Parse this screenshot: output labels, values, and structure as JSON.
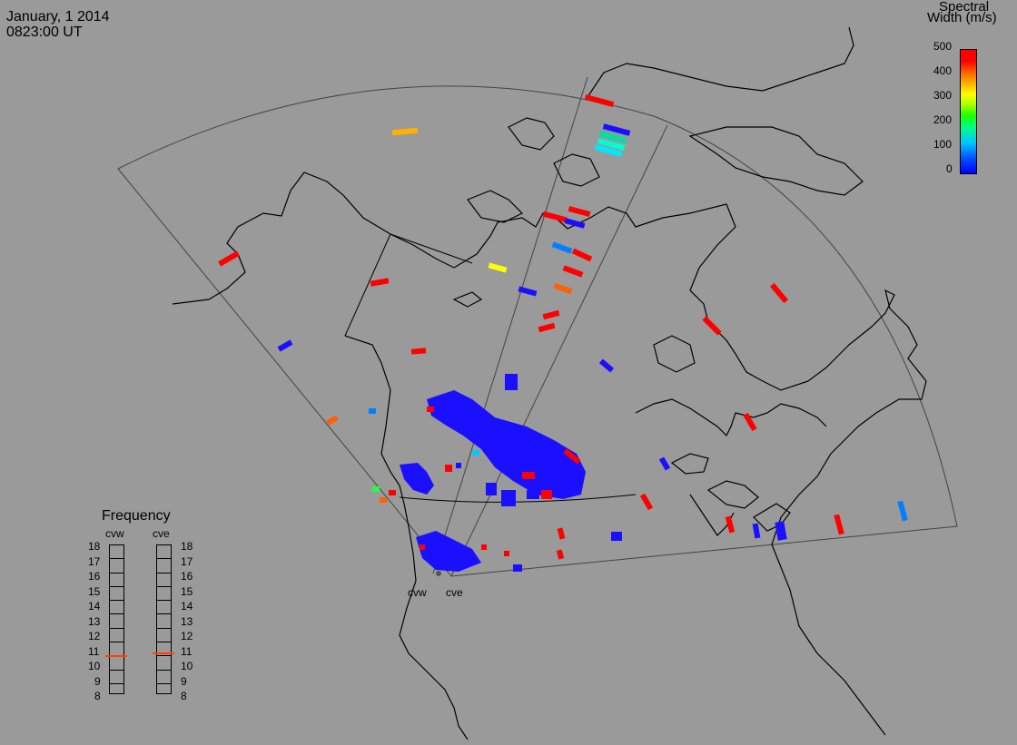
{
  "header": {
    "date": "January, 1 2014",
    "time": "0823:00 UT"
  },
  "colorbar": {
    "title_line1": "Spectral",
    "title_line2": "Width (m/s)",
    "ticks": [
      "500",
      "400",
      "300",
      "200",
      "100",
      "0"
    ],
    "colors": [
      "#ff0000",
      "#ff6000",
      "#ffff00",
      "#00ff80",
      "#00c8ff",
      "#0000ff"
    ]
  },
  "frequency_panel": {
    "title": "Frequency",
    "radars": [
      "cvw",
      "cve"
    ],
    "levels": [
      "18",
      "17",
      "16",
      "15",
      "14",
      "13",
      "12",
      "11",
      "10",
      "9",
      "8"
    ],
    "cvw_value": 10.7,
    "cve_value": 10.9,
    "marker_color": "#ff4000"
  },
  "radar_sites": {
    "west": "cvw",
    "east": "cve"
  }
}
